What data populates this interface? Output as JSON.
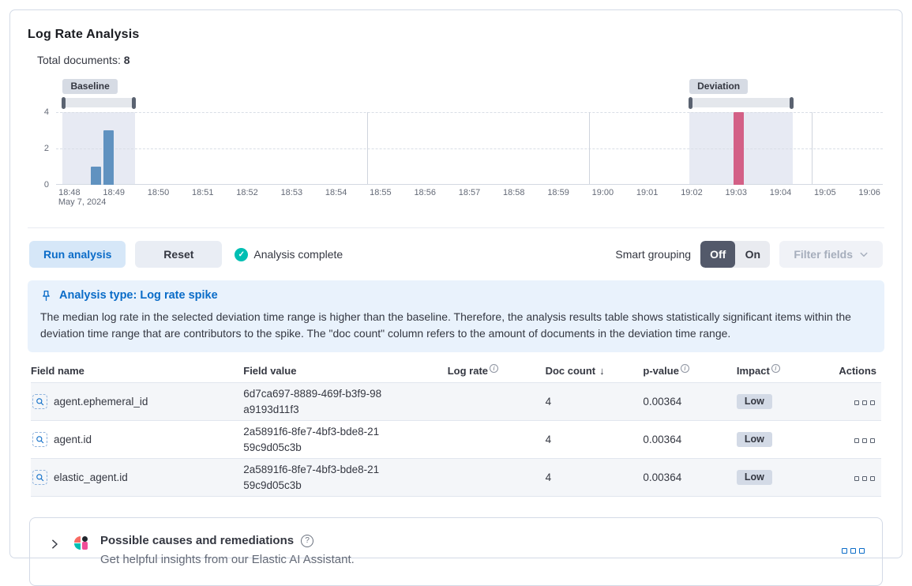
{
  "panel": {
    "title": "Log Rate Analysis"
  },
  "summary": {
    "label": "Total documents: ",
    "value": "8"
  },
  "chart_data": {
    "type": "bar",
    "title": "document count histogram",
    "x_unit": "minutes after 18:48 on May 7, 2024",
    "x_domain": [
      -0.3,
      18.3
    ],
    "x_axis_labels": [
      "18:48",
      "18:49",
      "18:50",
      "18:51",
      "18:52",
      "18:53",
      "18:54",
      "18:55",
      "18:56",
      "18:57",
      "18:58",
      "18:59",
      "19:00",
      "19:01",
      "19:02",
      "19:03",
      "19:04",
      "19:05",
      "19:06"
    ],
    "x_axis_sublabel": "May 7, 2024",
    "y_ticks": [
      0,
      2,
      4
    ],
    "y_gridlines": [
      2,
      4
    ],
    "ylim": [
      0,
      4
    ],
    "vlines": [
      6.7,
      11.7,
      16.7
    ],
    "series": [
      {
        "name": "baseline-doc-count",
        "color": "#6092c0",
        "points": [
          {
            "t": 0.6,
            "value": 1
          },
          {
            "t": 0.88,
            "value": 3
          }
        ]
      },
      {
        "name": "deviation-doc-count",
        "color": "#d36086",
        "points": [
          {
            "t": 15.05,
            "value": 4
          }
        ]
      }
    ],
    "annotations": {
      "baseline": {
        "label": "Baseline",
        "t0": -0.15,
        "t1": 1.48
      },
      "deviation": {
        "label": "Deviation",
        "t0": 13.95,
        "t1": 16.28
      }
    }
  },
  "toolbar": {
    "run_button": "Run analysis",
    "reset_button": "Reset",
    "status": "Analysis complete",
    "smart_grouping_label": "Smart grouping",
    "toggle_off": "Off",
    "toggle_on": "On",
    "filter_fields": "Filter fields"
  },
  "callout": {
    "title": "Analysis type: Log rate spike",
    "body": "The median log rate in the selected deviation time range is higher than the baseline. Therefore, the analysis results table shows statistically significant items within the deviation time range that are contributors to the spike. The \"doc count\" column refers to the amount of documents in the deviation time range."
  },
  "table": {
    "headers": {
      "field_name": "Field name",
      "field_value": "Field value",
      "log_rate": "Log rate",
      "doc_count": "Doc count",
      "p_value": "p-value",
      "impact": "Impact",
      "actions": "Actions"
    },
    "sort": {
      "column": "Doc count",
      "direction": "desc",
      "icon": "↓"
    },
    "rows": [
      {
        "field_name": "agent.ephemeral_id",
        "field_value": "6d7ca697-8889-469f-b3f9-98a9193d11f3",
        "doc_count": "4",
        "p_value": "0.00364",
        "impact": "Low"
      },
      {
        "field_name": "agent.id",
        "field_value": "2a5891f6-8fe7-4bf3-bde8-2159c9d05c3b",
        "doc_count": "4",
        "p_value": "0.00364",
        "impact": "Low"
      },
      {
        "field_name": "elastic_agent.id",
        "field_value": "2a5891f6-8fe7-4bf3-bde8-2159c9d05c3b",
        "doc_count": "4",
        "p_value": "0.00364",
        "impact": "Low"
      }
    ]
  },
  "footer": {
    "title": "Possible causes and remediations",
    "subtitle": "Get helpful insights from our Elastic AI Assistant.",
    "help_glyph": "?"
  },
  "icons": {
    "check": "✓",
    "pin": "pushpin-icon",
    "chevron_right": "chevron-right",
    "chevron_down": "chevron-down",
    "boxes": "boxes-horizontal",
    "field_search": "magnifier-in-dashed-box"
  },
  "colors": {
    "primary_blue": "#0b6cc8",
    "baseline_bar": "#6092c0",
    "deviation_bar": "#d36086",
    "teal_success": "#00bfb3",
    "toggle_selected": "#53596a",
    "callout_bg": "#e9f2fc",
    "badge_bg": "#d3dae6",
    "panel_border": "#d3dae6"
  }
}
